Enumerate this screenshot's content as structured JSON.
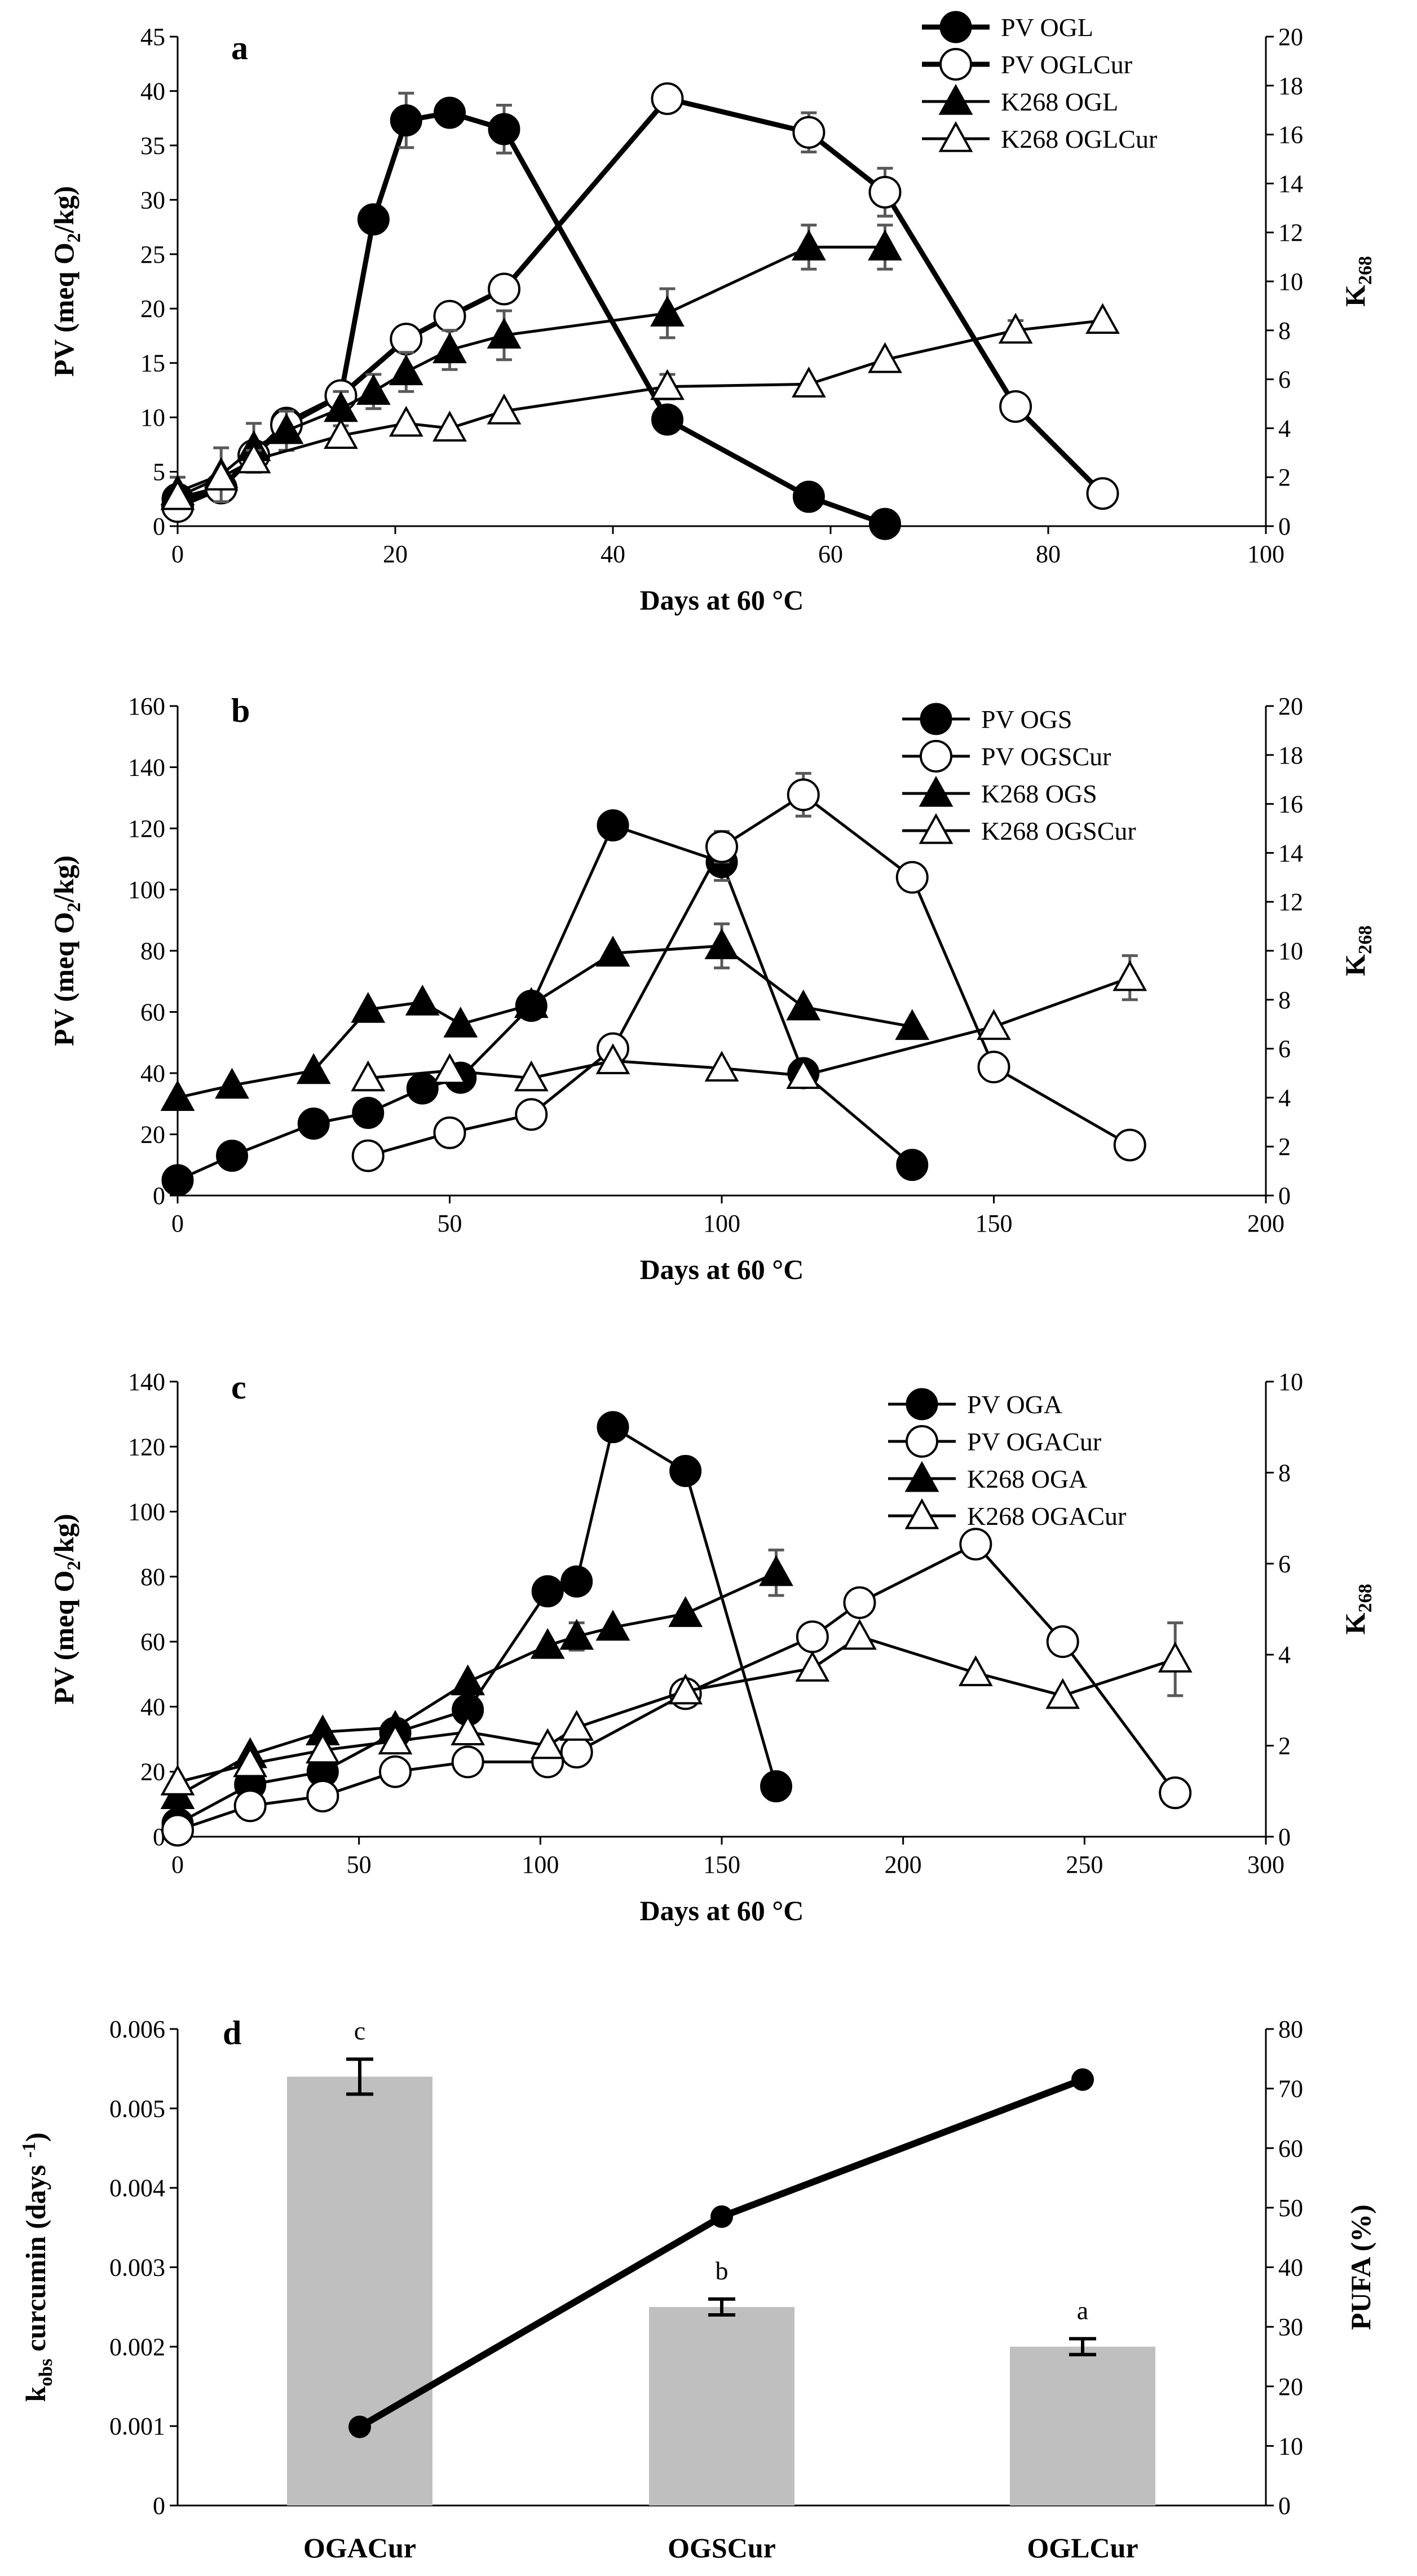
{
  "chart_data": [
    {
      "panel_label": "a",
      "type": "line",
      "xlabel": "Days at 60 °C",
      "xlim": [
        0,
        100
      ],
      "xticks": [
        0,
        20,
        40,
        60,
        80,
        100
      ],
      "ylabel": "PV (meq O2/kg)",
      "ylabel_main": "PV (meq O",
      "ylabel_sub": "2",
      "ylabel_end": "/kg)",
      "ylim": [
        0,
        45
      ],
      "yticks": [
        0,
        5,
        10,
        15,
        20,
        25,
        30,
        35,
        40,
        45
      ],
      "y2label": "K268",
      "y2label_main": "K",
      "y2label_sub": "268",
      "y2lim": [
        0,
        20
      ],
      "y2ticks": [
        0,
        2,
        4,
        6,
        8,
        10,
        12,
        14,
        16,
        18,
        20
      ],
      "series": [
        {
          "name": "PV OGL",
          "axis": "left",
          "marker": "filled-circle",
          "thick": true,
          "x": [
            0,
            4,
            7,
            10,
            15,
            18,
            21,
            25,
            30,
            45,
            58,
            65
          ],
          "y": [
            2.5,
            3.5,
            6.5,
            9.5,
            12,
            28.2,
            37.3,
            38,
            36.5,
            9.8,
            2.7,
            0.2
          ],
          "err": [
            0,
            0,
            0,
            0,
            0,
            0,
            2.5,
            0,
            2.2,
            0,
            0,
            0
          ]
        },
        {
          "name": "PV OGLCur",
          "axis": "left",
          "marker": "open-circle",
          "thick": true,
          "x": [
            0,
            4,
            7,
            10,
            15,
            21,
            25,
            30,
            45,
            58,
            65,
            77,
            85
          ],
          "y": [
            1.8,
            3.5,
            6.5,
            9.3,
            12,
            17.2,
            19.3,
            21.8,
            39.3,
            36.2,
            30.7,
            11,
            3
          ],
          "err": [
            0,
            0,
            0,
            0,
            0,
            0,
            0,
            0,
            0,
            1.8,
            2.2,
            0,
            0
          ]
        },
        {
          "name": "K268 OGL",
          "axis": "right",
          "marker": "filled-triangle",
          "thick": false,
          "x": [
            0,
            4,
            7,
            10,
            15,
            18,
            21,
            25,
            30,
            45,
            58,
            65
          ],
          "y": [
            1.4,
            2.1,
            3.2,
            3.9,
            4.8,
            5.5,
            6.3,
            7.2,
            7.8,
            8.7,
            11.4,
            11.4
          ],
          "err": [
            0.6,
            1.1,
            1.0,
            0.8,
            0.7,
            0.7,
            0.8,
            0.8,
            1.0,
            1.0,
            0.9,
            0.9
          ]
        },
        {
          "name": "K268 OGLCur",
          "axis": "right",
          "marker": "open-triangle",
          "thick": false,
          "x": [
            0,
            4,
            7,
            15,
            21,
            25,
            30,
            45,
            58,
            65,
            77,
            85
          ],
          "y": [
            1.2,
            2,
            2.7,
            3.7,
            4.2,
            4,
            4.7,
            5.7,
            5.8,
            6.8,
            8,
            8.4
          ],
          "err": [
            0,
            0,
            0.4,
            0,
            0,
            0,
            0,
            0.5,
            0,
            0,
            0.4,
            0
          ]
        }
      ]
    },
    {
      "panel_label": "b",
      "type": "line",
      "xlabel": "Days at 60 °C",
      "xlim": [
        0,
        200
      ],
      "xticks": [
        0,
        50,
        100,
        150,
        200
      ],
      "ylabel": "PV (meq O2/kg)",
      "ylabel_main": "PV (meq O",
      "ylabel_sub": "2",
      "ylabel_end": "/kg)",
      "ylim": [
        0,
        160
      ],
      "yticks": [
        0,
        20,
        40,
        60,
        80,
        100,
        120,
        140,
        160
      ],
      "y2label": "K268",
      "y2label_main": "K",
      "y2label_sub": "268",
      "y2lim": [
        0,
        20
      ],
      "y2ticks": [
        0,
        2,
        4,
        6,
        8,
        10,
        12,
        14,
        16,
        18,
        20
      ],
      "series": [
        {
          "name": "PV OGS",
          "axis": "left",
          "marker": "filled-circle",
          "thick": false,
          "x": [
            0,
            10,
            25,
            35,
            45,
            52,
            65,
            80,
            100,
            115,
            135
          ],
          "y": [
            5,
            13,
            23.5,
            27,
            35,
            38.5,
            62,
            121,
            109,
            40,
            10
          ],
          "err": [
            0,
            0,
            0,
            0,
            0,
            0,
            0,
            0,
            6,
            0,
            0
          ]
        },
        {
          "name": "PV OGSCur",
          "axis": "left",
          "marker": "open-circle",
          "thick": false,
          "x": [
            35,
            50,
            65,
            80,
            100,
            115,
            135,
            150,
            175
          ],
          "y": [
            13,
            20.5,
            26.5,
            48,
            114,
            131,
            104,
            42,
            16.5
          ],
          "err": [
            0,
            0,
            0,
            0,
            5,
            7,
            0,
            0,
            0
          ]
        },
        {
          "name": "K268 OGS",
          "axis": "right",
          "marker": "filled-triangle",
          "thick": false,
          "x": [
            0,
            10,
            25,
            35,
            45,
            52,
            65,
            80,
            100,
            115,
            135
          ],
          "y": [
            4,
            4.5,
            5.1,
            7.6,
            7.9,
            7,
            7.8,
            9.9,
            10.2,
            7.7,
            6.9
          ],
          "err": [
            0,
            0,
            0,
            0,
            0,
            0,
            0,
            0,
            0.9,
            0,
            0
          ]
        },
        {
          "name": "K268 OGSCur",
          "axis": "right",
          "marker": "open-triangle",
          "thick": false,
          "x": [
            35,
            50,
            65,
            80,
            100,
            115,
            150,
            175
          ],
          "y": [
            4.8,
            5.1,
            4.8,
            5.5,
            5.2,
            4.9,
            6.9,
            8.9
          ],
          "err": [
            0,
            0,
            0,
            0,
            0,
            0,
            0,
            0.9
          ]
        }
      ]
    },
    {
      "panel_label": "c",
      "type": "line",
      "xlabel": "Days at 60 °C",
      "xlim": [
        0,
        300
      ],
      "xticks": [
        0,
        50,
        100,
        150,
        200,
        250,
        300
      ],
      "ylabel": "PV (meq O2/kg)",
      "ylabel_main": "PV (meq O",
      "ylabel_sub": "2",
      "ylabel_end": "/kg)",
      "ylim": [
        0,
        140
      ],
      "yticks": [
        0,
        20,
        40,
        60,
        80,
        100,
        120,
        140
      ],
      "y2label": "K268",
      "y2label_main": "K",
      "y2label_sub": "268",
      "y2lim": [
        0,
        10
      ],
      "y2ticks": [
        0,
        2,
        4,
        6,
        8,
        10
      ],
      "series": [
        {
          "name": "PV OGA",
          "axis": "left",
          "marker": "filled-circle",
          "thick": false,
          "x": [
            0,
            20,
            40,
            60,
            80,
            102,
            110,
            120,
            140,
            165
          ],
          "y": [
            4,
            16,
            20,
            32,
            39,
            75.5,
            78.5,
            126,
            112.5,
            15.5
          ],
          "err": [
            0,
            0,
            0,
            0,
            0,
            0,
            0,
            0,
            0,
            0
          ]
        },
        {
          "name": "PV OGACur",
          "axis": "left",
          "marker": "open-circle",
          "thick": false,
          "x": [
            0,
            20,
            40,
            60,
            80,
            102,
            110,
            140,
            175,
            188,
            220,
            244,
            275
          ],
          "y": [
            2,
            9.5,
            12.5,
            20,
            23,
            23,
            26,
            44,
            61.5,
            72,
            90,
            60,
            13.5
          ],
          "err": [
            0,
            0,
            0,
            0,
            0,
            0,
            0,
            0,
            0,
            0,
            0,
            0,
            0
          ]
        },
        {
          "name": "K268 OGA",
          "axis": "right",
          "marker": "filled-triangle",
          "thick": false,
          "x": [
            0,
            20,
            40,
            60,
            80,
            102,
            110,
            120,
            140,
            165
          ],
          "y": [
            0.9,
            1.8,
            2.3,
            2.4,
            3.4,
            4.2,
            4.4,
            4.6,
            4.9,
            5.8
          ],
          "err": [
            0,
            0,
            0,
            0,
            0,
            0,
            0.3,
            0,
            0,
            0.5
          ]
        },
        {
          "name": "K268 OGACur",
          "axis": "right",
          "marker": "open-triangle",
          "thick": false,
          "x": [
            0,
            20,
            40,
            60,
            80,
            102,
            110,
            140,
            175,
            188,
            220,
            244,
            275
          ],
          "y": [
            1.2,
            1.6,
            1.9,
            2.1,
            2.3,
            2,
            2.4,
            3.2,
            3.7,
            4.4,
            3.6,
            3.1,
            3.9
          ],
          "err": [
            0,
            0,
            0,
            0,
            0,
            0,
            0,
            0,
            0,
            0,
            0,
            0,
            0.8
          ]
        }
      ]
    },
    {
      "panel_label": "d",
      "type": "bar",
      "categories": [
        "OGACur",
        "OGSCur",
        "OGLCur"
      ],
      "ylabel": "kobs curcumin (days-1)",
      "ylabel_main": "k",
      "ylabel_sub": "obs",
      "ylabel_mid": " curcumin (days ",
      "ylabel_sup": "-1",
      "ylabel_end": ")",
      "ylim": [
        0,
        0.006
      ],
      "yticks": [
        "0",
        "0.001",
        "0.002",
        "0.003",
        "0.004",
        "0.005",
        "0.006"
      ],
      "y2label": "PUFA (%)",
      "y2lim": [
        0,
        80
      ],
      "y2ticks": [
        0,
        10,
        20,
        30,
        40,
        50,
        60,
        70,
        80
      ],
      "bar_series": {
        "name": "kobs curcumin",
        "values": [
          0.0054,
          0.0025,
          0.002
        ],
        "err": [
          0.00022,
          0.0001,
          0.0001
        ],
        "letters": [
          "c",
          "b",
          "a"
        ]
      },
      "line_series": {
        "name": "PUFA (%)",
        "values": [
          13.2,
          48.5,
          71.5
        ]
      }
    }
  ],
  "colors": {
    "ink": "#000000",
    "bar": "#bfbfbf",
    "error_bar": "#595959"
  }
}
